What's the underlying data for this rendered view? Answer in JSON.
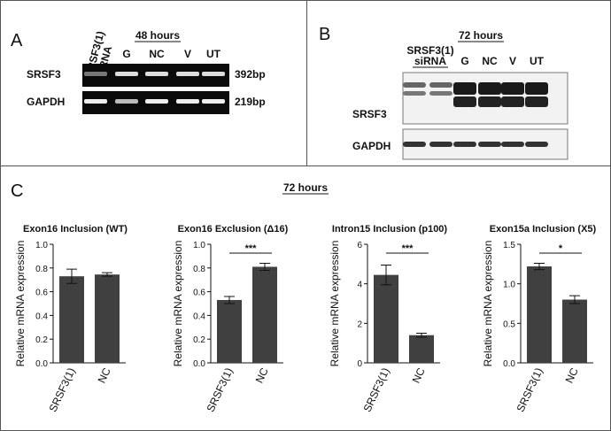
{
  "panel_a": {
    "label": "A",
    "title": "48 hours",
    "lane_label_lines": [
      "SRSF3(1)",
      "siRNA"
    ],
    "lanes": [
      "G",
      "NC",
      "V",
      "UT"
    ],
    "rows": [
      "SRSF3",
      "GAPDH"
    ],
    "sizes": [
      "392bp",
      "219bp"
    ]
  },
  "panel_b": {
    "label": "B",
    "title": "72 hours",
    "lane_label_lines": [
      "SRSF3(1)",
      "siRNA"
    ],
    "lanes": [
      "G",
      "NC",
      "V",
      "UT"
    ],
    "rows": [
      "SRSF3",
      "GAPDH"
    ]
  },
  "panel_c": {
    "label": "C",
    "title": "72 hours"
  },
  "chart_data": [
    {
      "type": "bar",
      "title": "Exon16 Inclusion (WT)",
      "y_label": "Relative mRNA expression",
      "categories": [
        "SRSF3(1)",
        "NC"
      ],
      "color": "#404040",
      "series": [
        {
          "values": [
            0.73,
            0.745
          ],
          "errors": [
            0.06,
            0.015
          ]
        }
      ],
      "ylim": [
        0,
        1.0
      ],
      "yticks": [
        {
          "value": 0,
          "label": "0.0"
        },
        {
          "value": 0.2,
          "label": "0.2"
        },
        {
          "value": 0.4,
          "label": "0.4"
        },
        {
          "value": 0.6,
          "label": "0.6"
        },
        {
          "value": 0.8,
          "label": "0.8"
        },
        {
          "value": 1.0,
          "label": "1.0"
        }
      ]
    },
    {
      "type": "bar",
      "title": "Exon16 Exclusion (Δ16)",
      "y_label": "Relative mRNA expression",
      "categories": [
        "SRSF3(1)",
        "NC"
      ],
      "color": "#404040",
      "series": [
        {
          "values": [
            0.53,
            0.81
          ],
          "errors": [
            0.03,
            0.03
          ]
        }
      ],
      "ylim": [
        0,
        1.0
      ],
      "significance": "***",
      "yticks": [
        {
          "value": 0,
          "label": "0.0"
        },
        {
          "value": 0.2,
          "label": "0.2"
        },
        {
          "value": 0.4,
          "label": "0.4"
        },
        {
          "value": 0.6,
          "label": "0.6"
        },
        {
          "value": 0.8,
          "label": "0.8"
        },
        {
          "value": 1.0,
          "label": "1.0"
        }
      ]
    },
    {
      "type": "bar",
      "title": "Intron15 Inclusion (p100)",
      "y_label": "Relative mRNA expression",
      "categories": [
        "SRSF3(1)",
        "NC"
      ],
      "color": "#404040",
      "series": [
        {
          "values": [
            4.45,
            1.4
          ],
          "errors": [
            0.5,
            0.1
          ]
        }
      ],
      "ylim": [
        0,
        6
      ],
      "significance": "***",
      "yticks": [
        0,
        2,
        4,
        6
      ]
    },
    {
      "type": "bar",
      "title": "Exon15a Inclusion (X5)",
      "y_label": "Relative mRNA expression",
      "categories": [
        "SRSF3(1)",
        "NC"
      ],
      "color": "#404040",
      "series": [
        {
          "values": [
            1.22,
            0.8
          ],
          "errors": [
            0.04,
            0.05
          ]
        }
      ],
      "ylim": [
        0,
        1.5
      ],
      "significance": "*",
      "yticks": [
        {
          "value": 0,
          "label": "0.0"
        },
        {
          "value": 0.5,
          "label": "0.5"
        },
        {
          "value": 1.0,
          "label": "1.0"
        },
        {
          "value": 1.5,
          "label": "1.5"
        }
      ]
    }
  ]
}
